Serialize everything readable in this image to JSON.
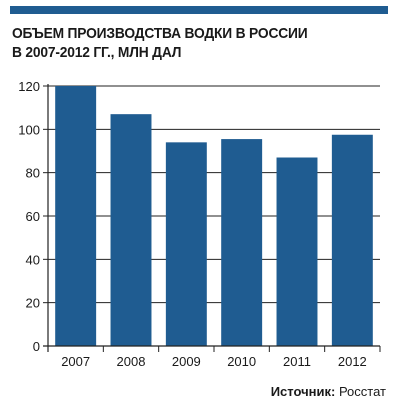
{
  "header": {
    "title_line1": "ОБЪЕМ ПРОИЗВОДСТВА ВОДКИ В РОССИИ",
    "title_line2": "В 2007-2012 ГГ., МЛН ДАЛ"
  },
  "footer": {
    "source_label": "Источник:",
    "source_value": "Росстат"
  },
  "colors": {
    "bar": "#1f5c91",
    "accent_bar": "#1f5c91",
    "grid": "#222222"
  },
  "chart_data": {
    "type": "bar",
    "title": "ОБЪЕМ ПРОИЗВОДСТВА ВОДКИ В РОССИИ В 2007-2012 ГГ., МЛН ДАЛ",
    "xlabel": "",
    "ylabel": "",
    "categories": [
      "2007",
      "2008",
      "2009",
      "2010",
      "2011",
      "2012"
    ],
    "values": [
      120,
      107,
      94,
      95.5,
      87,
      97.5
    ],
    "ylim": [
      0,
      120
    ],
    "yticks": [
      0,
      20,
      40,
      60,
      80,
      100,
      120
    ],
    "grid": true,
    "legend": "none"
  }
}
